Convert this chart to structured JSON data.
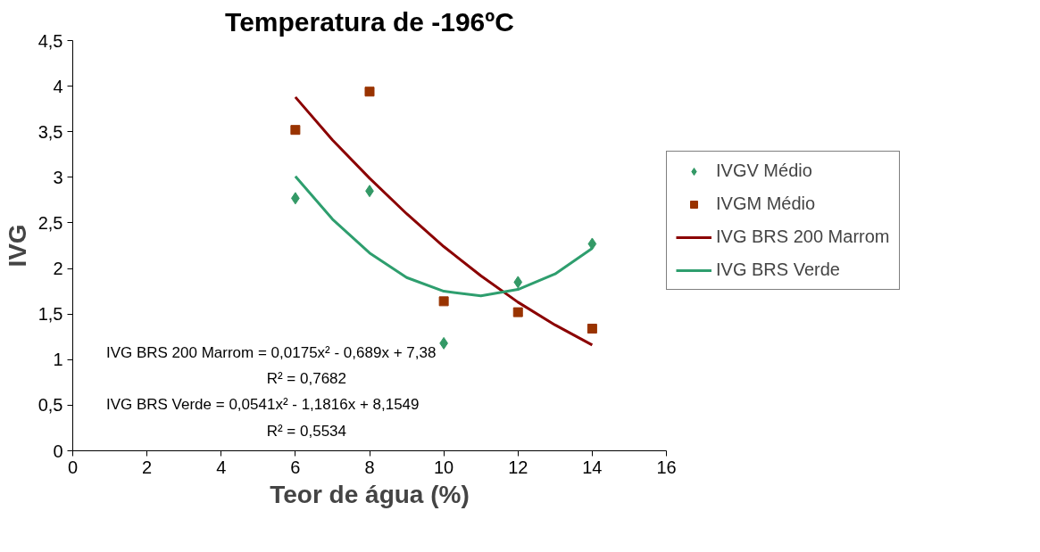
{
  "chart_data": {
    "type": "scatter",
    "title": "Temperatura de -196ºC",
    "xlabel": "Teor de água (%)",
    "ylabel": "IVG",
    "xlim": [
      0,
      16
    ],
    "xticks": [
      0,
      2,
      4,
      6,
      8,
      10,
      12,
      14,
      16
    ],
    "ylim": [
      0,
      4.5
    ],
    "yticks": [
      0,
      {
        "value": 0.5,
        "label": "0,5"
      },
      1,
      {
        "value": 1.5,
        "label": "1,5"
      },
      2,
      {
        "value": 2.5,
        "label": "2,5"
      },
      3,
      {
        "value": 3.5,
        "label": "3,5"
      },
      4,
      {
        "value": 4.5,
        "label": "4,5"
      }
    ],
    "grid": false,
    "legend": "right",
    "series": [
      {
        "name": "IVGV Médio",
        "marker": "diamond",
        "color": "#339966",
        "x": [
          6,
          8,
          10,
          12,
          14
        ],
        "values": [
          2.77,
          2.85,
          1.18,
          1.85,
          2.27
        ]
      },
      {
        "name": "IVGM Médio",
        "marker": "square",
        "color": "#993300",
        "x": [
          6,
          8,
          10,
          12,
          14
        ],
        "values": [
          3.52,
          3.94,
          1.64,
          1.52,
          1.34
        ]
      },
      {
        "name": "IVG BRS 200 Marrom",
        "type": "line",
        "line_style": "solid",
        "color": "#8b0000",
        "x": [
          6,
          7,
          8,
          9,
          10,
          11,
          12,
          13,
          14
        ],
        "values": [
          3.88,
          3.41,
          2.99,
          2.6,
          2.24,
          1.92,
          1.63,
          1.38,
          1.16
        ]
      },
      {
        "name": "IVG BRS Verde",
        "type": "line",
        "line_style": "solid",
        "color": "#2e9e6e",
        "x": [
          6,
          7,
          8,
          9,
          10,
          11,
          12,
          13,
          14
        ],
        "values": [
          3.01,
          2.54,
          2.17,
          1.9,
          1.75,
          1.7,
          1.77,
          1.94,
          2.22
        ]
      }
    ],
    "annotations": [
      "IVG BRS 200 Marrom = 0,0175x² - 0,689x + 7,38",
      "R² = 0,7682",
      "IVG BRS Verde = 0,0541x² - 1,1816x + 8,1549",
      "R² = 0,5534"
    ]
  }
}
